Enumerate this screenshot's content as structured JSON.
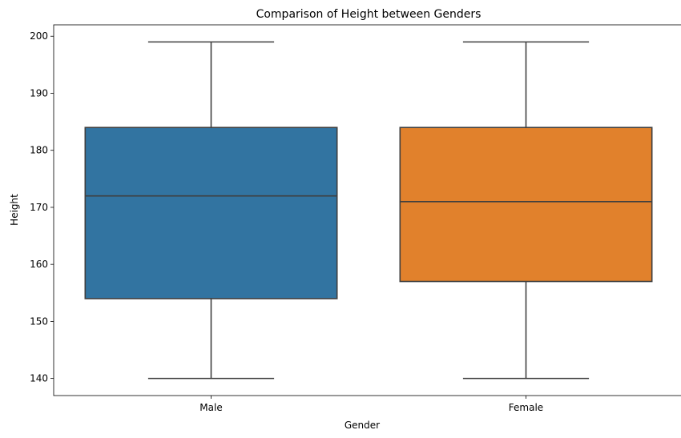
{
  "chart_data": {
    "type": "box",
    "title": "Comparison of Height between Genders",
    "xlabel": "Gender",
    "ylabel": "Height",
    "categories": [
      "Male",
      "Female"
    ],
    "boxes": [
      {
        "category": "Male",
        "min": 140,
        "q1": 154,
        "median": 172,
        "q3": 184,
        "max": 199,
        "color": "#3274a1"
      },
      {
        "category": "Female",
        "min": 140,
        "q1": 157,
        "median": 171,
        "q3": 184,
        "max": 199,
        "color": "#e1812c"
      }
    ],
    "ylim": [
      137,
      202
    ],
    "yticks": [
      140,
      150,
      160,
      170,
      180,
      190,
      200
    ],
    "grid": false,
    "line_color": "#3f3f3f"
  }
}
